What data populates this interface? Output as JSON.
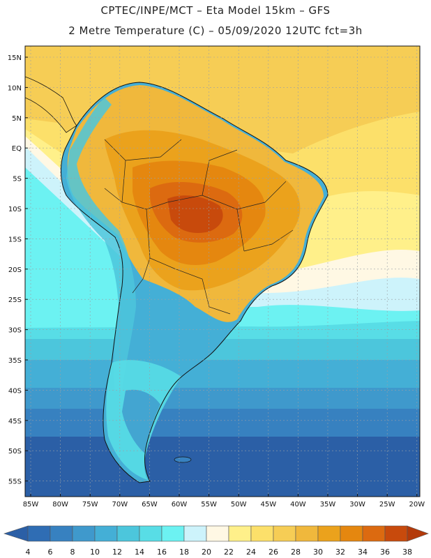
{
  "header": {
    "line1": "CPTEC/INPE/MCT –  Eta Model 15km – GFS",
    "line2": "2 Metre Temperature (C) – 05/09/2020 12UTC fct=3h"
  },
  "map": {
    "lat_labels": [
      "15N",
      "10N",
      "5N",
      "EQ",
      "5S",
      "10S",
      "15S",
      "20S",
      "25S",
      "30S",
      "35S",
      "40S",
      "45S",
      "50S",
      "55S"
    ],
    "lon_labels": [
      "85W",
      "80W",
      "75W",
      "70W",
      "65W",
      "60W",
      "55W",
      "50W",
      "45W",
      "40W",
      "35W",
      "30W",
      "25W",
      "20W"
    ]
  },
  "colorbar": {
    "labels": [
      "4",
      "6",
      "8",
      "10",
      "12",
      "14",
      "16",
      "18",
      "20",
      "22",
      "24",
      "26",
      "28",
      "30",
      "32",
      "34",
      "36",
      "38"
    ],
    "colors": [
      "#2b5fa6",
      "#2f6db4",
      "#3781c0",
      "#3f99cc",
      "#44afd6",
      "#4cc6dc",
      "#58dde6",
      "#6cf2f2",
      "#cdf3fb",
      "#fff8e4",
      "#fff08a",
      "#fce06a",
      "#f6cd55",
      "#f0b83c",
      "#eba21c",
      "#e5870f",
      "#dc6a10",
      "#c84a0c",
      "#b33a0a"
    ]
  }
}
